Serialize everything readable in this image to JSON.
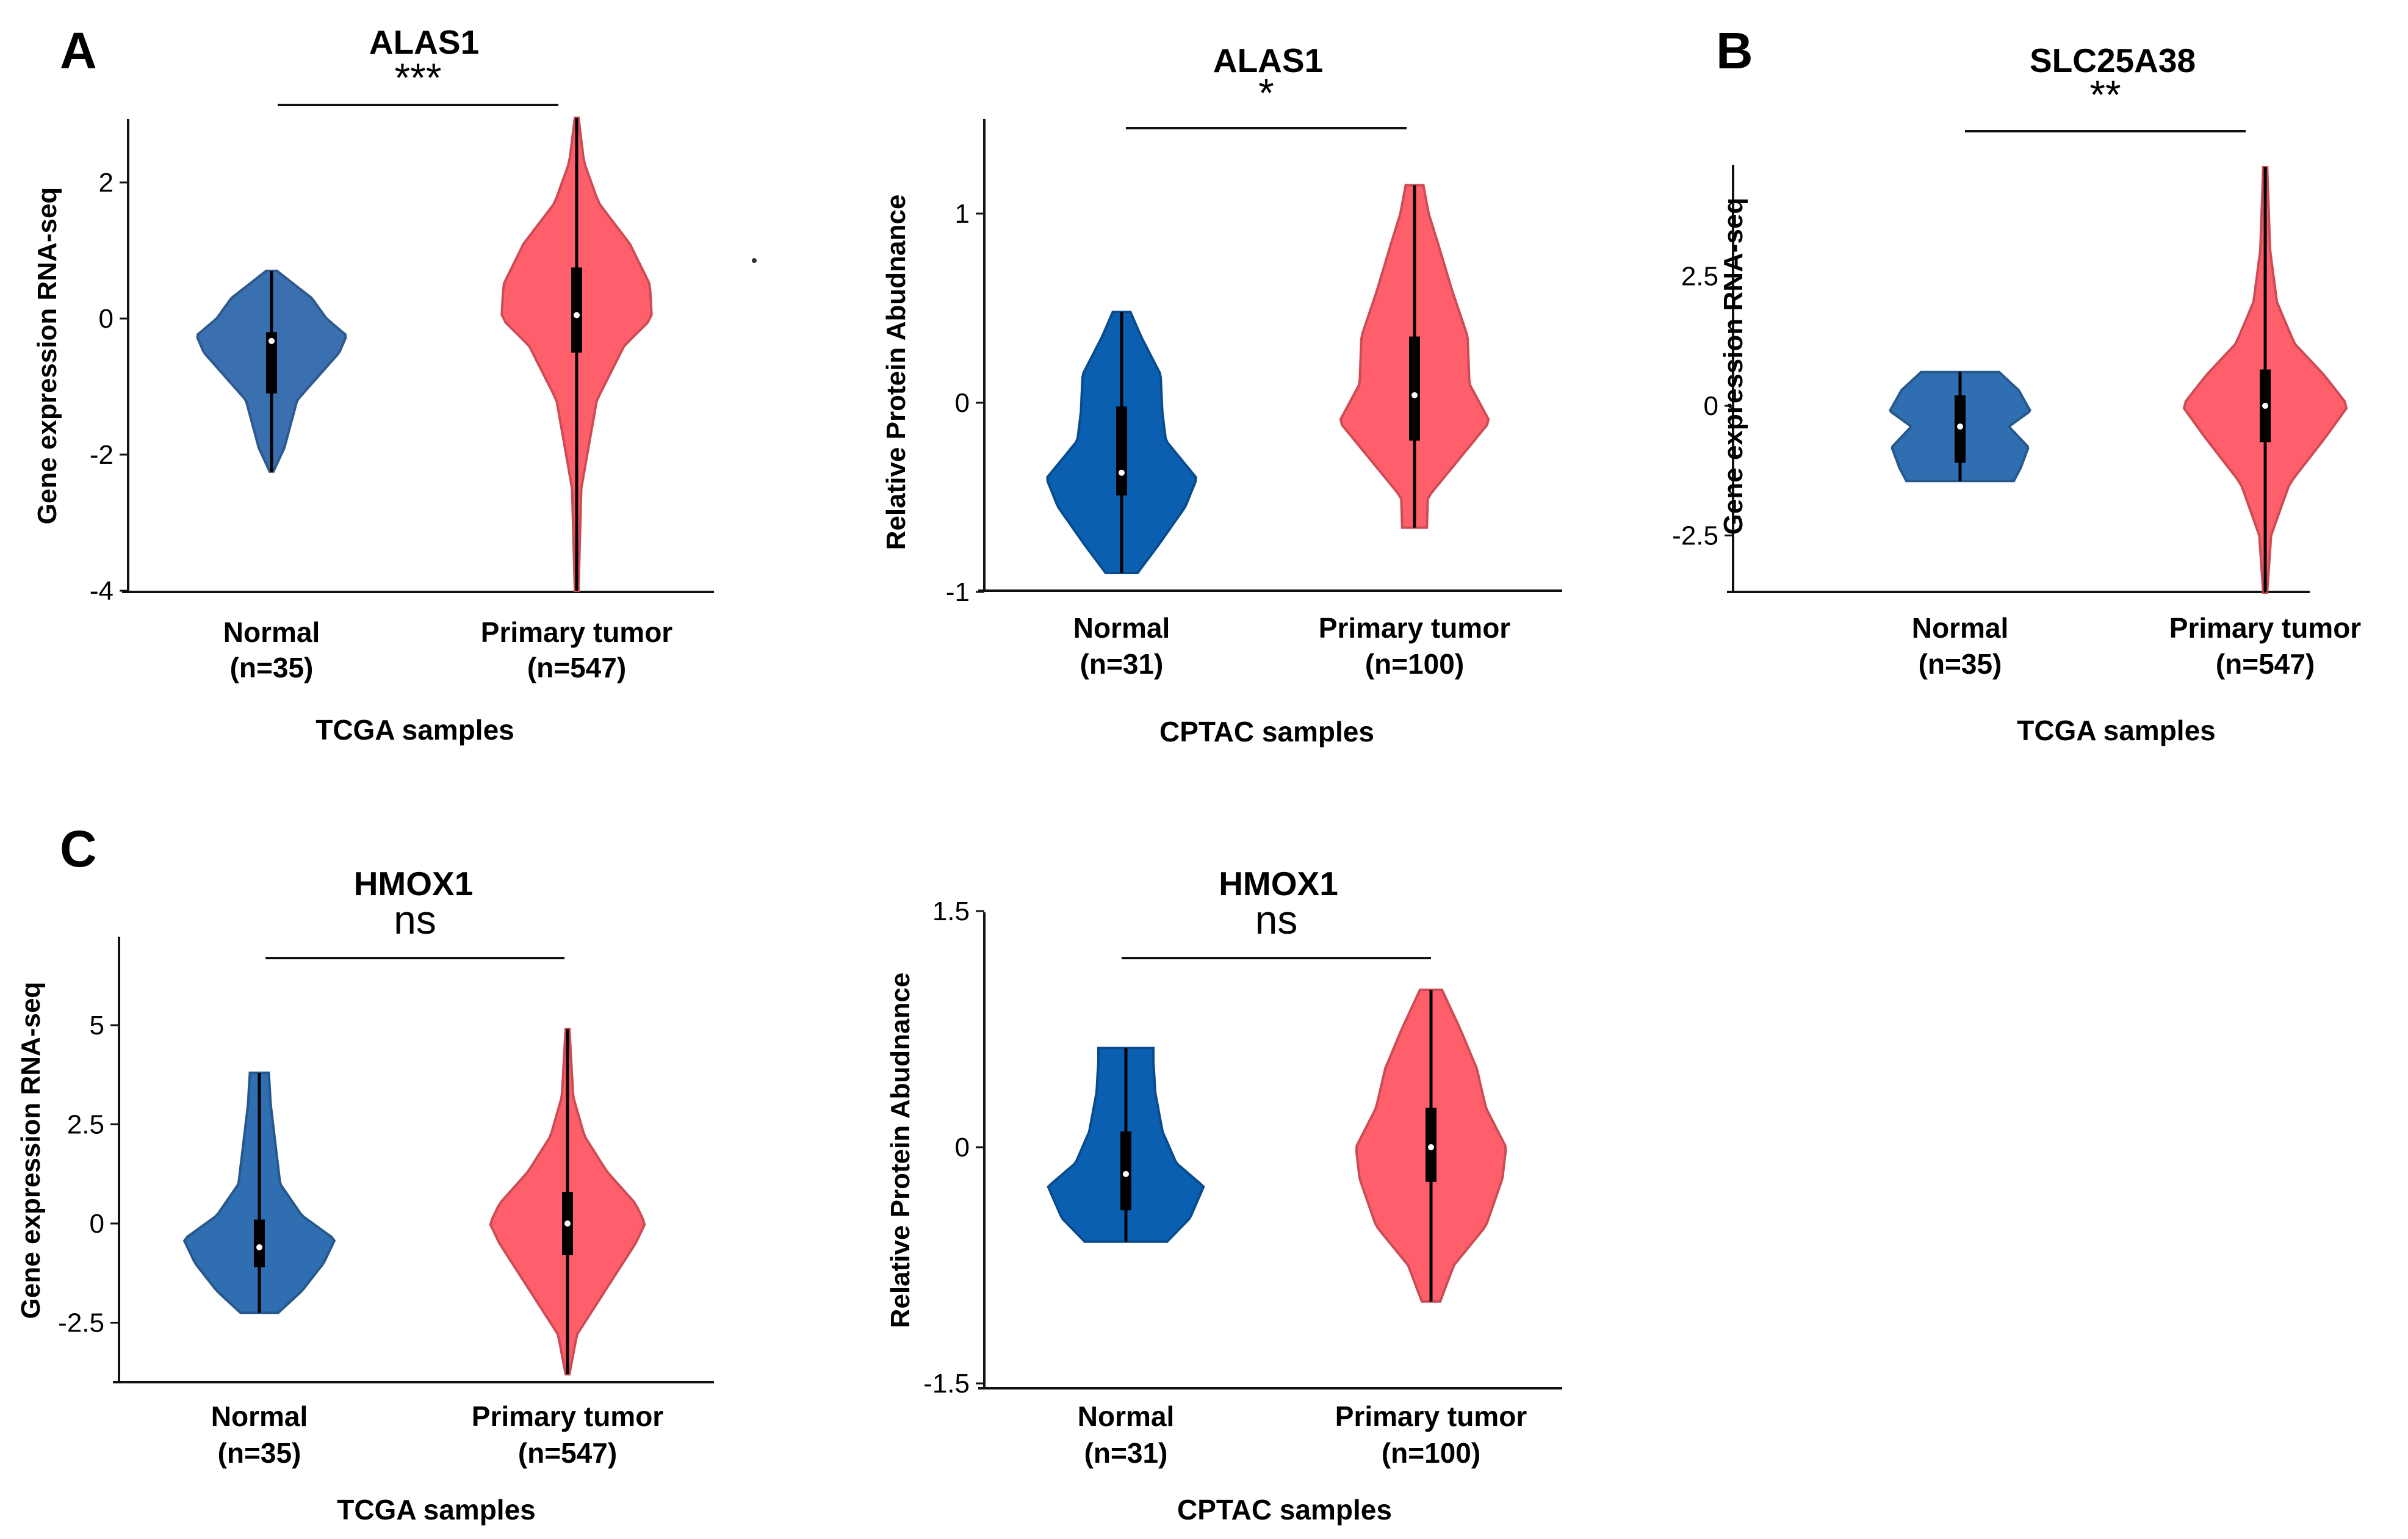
{
  "panel_letters": [
    "A",
    "B",
    "C"
  ],
  "chart_data": [
    {
      "type": "violin",
      "panel": "A",
      "title": "ALAS1",
      "ylabel": "Gene expression RNA-seq",
      "xlabel": "TCGA samples",
      "yticks": [
        2,
        0,
        -2,
        -4
      ],
      "ylim": [
        -4,
        3
      ],
      "significance": "***",
      "categories": [
        {
          "name": "Normal",
          "n": "(n=35)",
          "color": "#3a6fb0",
          "min": -2.25,
          "q1": -1.1,
          "median": -0.33,
          "q3": -0.2,
          "max": 0.7,
          "profile": [
            [
              -2.25,
              0.02
            ],
            [
              -1.9,
              0.14
            ],
            [
              -1.2,
              0.28
            ],
            [
              -0.5,
              0.74
            ],
            [
              -0.25,
              0.82
            ],
            [
              0.0,
              0.6
            ],
            [
              0.3,
              0.44
            ],
            [
              0.7,
              0.06
            ]
          ]
        },
        {
          "name": "Primary tumor",
          "n": "(n=547)",
          "color": "#ff5f6a",
          "min": -4.0,
          "q1": -0.5,
          "median": 0.05,
          "q3": 0.75,
          "max": 2.95,
          "profile": [
            [
              -4.0,
              0.02
            ],
            [
              -2.5,
              0.05
            ],
            [
              -1.2,
              0.22
            ],
            [
              -0.4,
              0.52
            ],
            [
              0.0,
              0.82
            ],
            [
              0.5,
              0.8
            ],
            [
              1.1,
              0.58
            ],
            [
              1.7,
              0.24
            ],
            [
              2.3,
              0.08
            ],
            [
              2.95,
              0.02
            ]
          ]
        }
      ]
    },
    {
      "type": "violin",
      "panel": "A",
      "title": "ALAS1",
      "ylabel": "Relative Protein Abudnance",
      "xlabel": "CPTAC samples",
      "yticks": [
        1,
        0,
        -1
      ],
      "ylim": [
        -1,
        1.5
      ],
      "significance": "*",
      "categories": [
        {
          "name": "Normal",
          "n": "(n=31)",
          "color": "#0b5fb0",
          "min": -0.9,
          "q1": -0.49,
          "median": -0.37,
          "q3": -0.02,
          "max": 0.48,
          "profile": [
            [
              -0.9,
              0.18
            ],
            [
              -0.75,
              0.42
            ],
            [
              -0.55,
              0.72
            ],
            [
              -0.4,
              0.85
            ],
            [
              -0.2,
              0.5
            ],
            [
              -0.05,
              0.46
            ],
            [
              0.15,
              0.44
            ],
            [
              0.35,
              0.22
            ],
            [
              0.48,
              0.1
            ]
          ]
        },
        {
          "name": "Primary tumor",
          "n": "(n=100)",
          "color": "#ff5f6a",
          "min": -0.66,
          "q1": -0.2,
          "median": 0.04,
          "q3": 0.35,
          "max": 1.15,
          "profile": [
            [
              -0.66,
              0.14
            ],
            [
              -0.5,
              0.15
            ],
            [
              -0.3,
              0.5
            ],
            [
              -0.1,
              0.85
            ],
            [
              0.1,
              0.62
            ],
            [
              0.35,
              0.6
            ],
            [
              0.6,
              0.42
            ],
            [
              0.85,
              0.26
            ],
            [
              1.0,
              0.16
            ],
            [
              1.15,
              0.1
            ]
          ]
        }
      ]
    },
    {
      "type": "violin",
      "panel": "B",
      "title": "SLC25A38",
      "ylabel": "Gene expression RNA-seq",
      "xlabel": "TCGA samples",
      "yticks": [
        "2.5",
        "0",
        "-2.5"
      ],
      "ylim": [
        -3.6,
        4.7
      ],
      "significance": "**",
      "categories": [
        {
          "name": "Normal",
          "n": "(n=35)",
          "color": "#2f6eb0",
          "min": -1.45,
          "q1": -1.1,
          "median": -0.4,
          "q3": 0.2,
          "max": 0.65,
          "profile": [
            [
              -1.45,
              0.55
            ],
            [
              -1.2,
              0.62
            ],
            [
              -0.8,
              0.7
            ],
            [
              -0.4,
              0.5
            ],
            [
              -0.1,
              0.72
            ],
            [
              0.3,
              0.6
            ],
            [
              0.65,
              0.4
            ]
          ]
        },
        {
          "name": "Primary tumor",
          "n": "(n=547)",
          "color": "#ff5f6a",
          "min": -3.6,
          "q1": -0.7,
          "median": 0.0,
          "q3": 0.7,
          "max": 4.6,
          "profile": [
            [
              -3.6,
              0.02
            ],
            [
              -2.5,
              0.06
            ],
            [
              -1.5,
              0.25
            ],
            [
              -0.6,
              0.62
            ],
            [
              0.0,
              0.85
            ],
            [
              0.6,
              0.6
            ],
            [
              1.2,
              0.3
            ],
            [
              2.0,
              0.12
            ],
            [
              3.0,
              0.05
            ],
            [
              4.6,
              0.02
            ]
          ]
        }
      ]
    },
    {
      "type": "violin",
      "panel": "C",
      "title": "HMOX1",
      "ylabel": "Gene expression RNA-seq",
      "xlabel": "TCGA samples",
      "yticks": [
        "5",
        "2.5",
        "0",
        "-2.5"
      ],
      "ylim": [
        -4,
        7
      ],
      "significance": "ns",
      "categories": [
        {
          "name": "Normal",
          "n": "(n=35)",
          "color": "#2f6eb0",
          "min": -2.25,
          "q1": -1.1,
          "median": -0.6,
          "q3": 0.1,
          "max": 3.8,
          "profile": [
            [
              -2.25,
              0.2
            ],
            [
              -1.7,
              0.45
            ],
            [
              -1.0,
              0.68
            ],
            [
              -0.4,
              0.8
            ],
            [
              0.2,
              0.45
            ],
            [
              1.0,
              0.22
            ],
            [
              2.0,
              0.17
            ],
            [
              3.0,
              0.12
            ],
            [
              3.8,
              0.1
            ]
          ]
        },
        {
          "name": "Primary tumor",
          "n": "(n=547)",
          "color": "#ff5f6a",
          "min": -3.8,
          "q1": -0.8,
          "median": 0.0,
          "q3": 0.8,
          "max": 4.9,
          "profile": [
            [
              -3.8,
              0.02
            ],
            [
              -2.8,
              0.1
            ],
            [
              -1.5,
              0.45
            ],
            [
              -0.5,
              0.72
            ],
            [
              0.0,
              0.82
            ],
            [
              0.5,
              0.72
            ],
            [
              1.3,
              0.42
            ],
            [
              2.2,
              0.18
            ],
            [
              3.2,
              0.06
            ],
            [
              4.9,
              0.02
            ]
          ]
        }
      ]
    },
    {
      "type": "violin",
      "panel": "C",
      "title": "HMOX1",
      "ylabel": "Relative Protein Abudnance",
      "xlabel": "CPTAC samples",
      "yticks": [
        "1.5",
        "0",
        "-1.5"
      ],
      "ylim": [
        -1.5,
        1.5
      ],
      "significance": "ns",
      "categories": [
        {
          "name": "Normal",
          "n": "(n=31)",
          "color": "#0b5fb0",
          "min": -0.6,
          "q1": -0.4,
          "median": -0.17,
          "q3": 0.1,
          "max": 0.63,
          "profile": [
            [
              -0.6,
              0.45
            ],
            [
              -0.45,
              0.7
            ],
            [
              -0.25,
              0.85
            ],
            [
              -0.1,
              0.55
            ],
            [
              0.1,
              0.4
            ],
            [
              0.35,
              0.32
            ],
            [
              0.55,
              0.3
            ],
            [
              0.63,
              0.3
            ]
          ]
        },
        {
          "name": "Primary tumor",
          "n": "(n=100)",
          "color": "#ff5f6a",
          "min": -0.98,
          "q1": -0.22,
          "median": 0.0,
          "q3": 0.25,
          "max": 1.0,
          "profile": [
            [
              -0.98,
              0.1
            ],
            [
              -0.75,
              0.25
            ],
            [
              -0.5,
              0.6
            ],
            [
              -0.2,
              0.78
            ],
            [
              0.0,
              0.82
            ],
            [
              0.25,
              0.6
            ],
            [
              0.5,
              0.5
            ],
            [
              0.75,
              0.32
            ],
            [
              1.0,
              0.12
            ]
          ]
        }
      ]
    }
  ]
}
